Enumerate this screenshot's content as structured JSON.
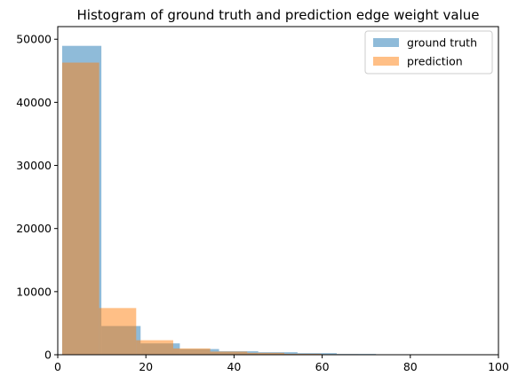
{
  "chart_data": {
    "type": "bar",
    "title": "Histogram of ground truth and prediction edge weight value",
    "xlabel": "",
    "ylabel": "",
    "xlim": [
      0,
      100
    ],
    "ylim": [
      0,
      52000
    ],
    "x_ticks": [
      0,
      20,
      40,
      60,
      80,
      100
    ],
    "y_ticks": [
      0,
      10000,
      20000,
      30000,
      40000,
      50000
    ],
    "grid": false,
    "legend_position": "top-right",
    "series": [
      {
        "name": "ground truth",
        "color": "#1f77b4",
        "alpha": 0.5,
        "bin_edges": [
          1,
          9.9,
          18.8,
          27.7,
          36.6,
          45.5,
          54.4,
          63.3,
          72.2,
          81.1,
          90
        ],
        "values": [
          48950,
          4550,
          1800,
          900,
          550,
          400,
          250,
          120,
          60,
          30
        ]
      },
      {
        "name": "prediction",
        "color": "#ff7f0e",
        "alpha": 0.5,
        "bin_edges": [
          1,
          9.4,
          17.8,
          26.2,
          34.6,
          43.0,
          51.4,
          59.8,
          68.2,
          76.6,
          85
        ],
        "values": [
          46300,
          7400,
          2300,
          1000,
          500,
          300,
          150,
          80,
          40,
          20
        ]
      }
    ]
  }
}
